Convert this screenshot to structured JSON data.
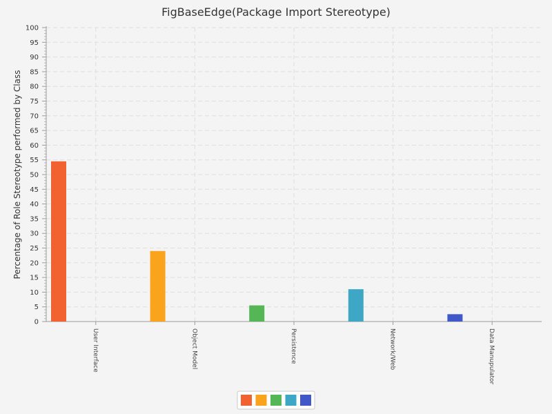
{
  "chart_data": {
    "type": "bar",
    "title": "FigBaseEdge(Package Import Stereotype)",
    "ylabel": "Percentage of Role Stereotype performed by Class",
    "xlabel": "",
    "categories": [
      "User Interface",
      "Object Model",
      "Persistence",
      "Network/Web",
      "Data Manupulator"
    ],
    "values": [
      54.5,
      24.0,
      5.5,
      11.0,
      2.5
    ],
    "colors": [
      "#f26130",
      "#faa31c",
      "#55b655",
      "#3ea7c5",
      "#4058c8"
    ],
    "ylim": [
      0,
      100
    ],
    "ytick_step": 5,
    "grid": true,
    "legend_position": "bottom-center"
  }
}
